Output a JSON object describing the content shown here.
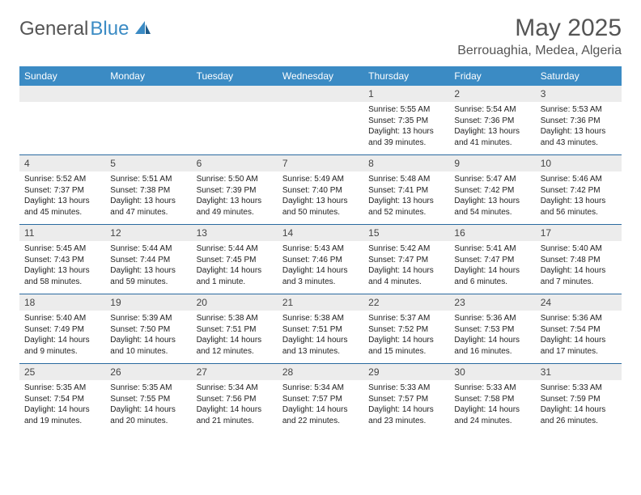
{
  "brand": {
    "general": "General",
    "blue": "Blue"
  },
  "title": "May 2025",
  "location": "Berrouaghia, Medea, Algeria",
  "colors": {
    "header_bg": "#3b8bc4",
    "divider": "#2a6aa0",
    "band": "#ececec",
    "text": "#222222",
    "title_text": "#555555"
  },
  "fonts": {
    "title_size_pt": 22,
    "location_size_pt": 12,
    "body_size_pt": 8
  },
  "dow": [
    "Sunday",
    "Monday",
    "Tuesday",
    "Wednesday",
    "Thursday",
    "Friday",
    "Saturday"
  ],
  "weeks": [
    [
      {
        "n": "",
        "t": ""
      },
      {
        "n": "",
        "t": ""
      },
      {
        "n": "",
        "t": ""
      },
      {
        "n": "",
        "t": ""
      },
      {
        "n": "1",
        "t": "Sunrise: 5:55 AM\nSunset: 7:35 PM\nDaylight: 13 hours and 39 minutes."
      },
      {
        "n": "2",
        "t": "Sunrise: 5:54 AM\nSunset: 7:36 PM\nDaylight: 13 hours and 41 minutes."
      },
      {
        "n": "3",
        "t": "Sunrise: 5:53 AM\nSunset: 7:36 PM\nDaylight: 13 hours and 43 minutes."
      }
    ],
    [
      {
        "n": "4",
        "t": "Sunrise: 5:52 AM\nSunset: 7:37 PM\nDaylight: 13 hours and 45 minutes."
      },
      {
        "n": "5",
        "t": "Sunrise: 5:51 AM\nSunset: 7:38 PM\nDaylight: 13 hours and 47 minutes."
      },
      {
        "n": "6",
        "t": "Sunrise: 5:50 AM\nSunset: 7:39 PM\nDaylight: 13 hours and 49 minutes."
      },
      {
        "n": "7",
        "t": "Sunrise: 5:49 AM\nSunset: 7:40 PM\nDaylight: 13 hours and 50 minutes."
      },
      {
        "n": "8",
        "t": "Sunrise: 5:48 AM\nSunset: 7:41 PM\nDaylight: 13 hours and 52 minutes."
      },
      {
        "n": "9",
        "t": "Sunrise: 5:47 AM\nSunset: 7:42 PM\nDaylight: 13 hours and 54 minutes."
      },
      {
        "n": "10",
        "t": "Sunrise: 5:46 AM\nSunset: 7:42 PM\nDaylight: 13 hours and 56 minutes."
      }
    ],
    [
      {
        "n": "11",
        "t": "Sunrise: 5:45 AM\nSunset: 7:43 PM\nDaylight: 13 hours and 58 minutes."
      },
      {
        "n": "12",
        "t": "Sunrise: 5:44 AM\nSunset: 7:44 PM\nDaylight: 13 hours and 59 minutes."
      },
      {
        "n": "13",
        "t": "Sunrise: 5:44 AM\nSunset: 7:45 PM\nDaylight: 14 hours and 1 minute."
      },
      {
        "n": "14",
        "t": "Sunrise: 5:43 AM\nSunset: 7:46 PM\nDaylight: 14 hours and 3 minutes."
      },
      {
        "n": "15",
        "t": "Sunrise: 5:42 AM\nSunset: 7:47 PM\nDaylight: 14 hours and 4 minutes."
      },
      {
        "n": "16",
        "t": "Sunrise: 5:41 AM\nSunset: 7:47 PM\nDaylight: 14 hours and 6 minutes."
      },
      {
        "n": "17",
        "t": "Sunrise: 5:40 AM\nSunset: 7:48 PM\nDaylight: 14 hours and 7 minutes."
      }
    ],
    [
      {
        "n": "18",
        "t": "Sunrise: 5:40 AM\nSunset: 7:49 PM\nDaylight: 14 hours and 9 minutes."
      },
      {
        "n": "19",
        "t": "Sunrise: 5:39 AM\nSunset: 7:50 PM\nDaylight: 14 hours and 10 minutes."
      },
      {
        "n": "20",
        "t": "Sunrise: 5:38 AM\nSunset: 7:51 PM\nDaylight: 14 hours and 12 minutes."
      },
      {
        "n": "21",
        "t": "Sunrise: 5:38 AM\nSunset: 7:51 PM\nDaylight: 14 hours and 13 minutes."
      },
      {
        "n": "22",
        "t": "Sunrise: 5:37 AM\nSunset: 7:52 PM\nDaylight: 14 hours and 15 minutes."
      },
      {
        "n": "23",
        "t": "Sunrise: 5:36 AM\nSunset: 7:53 PM\nDaylight: 14 hours and 16 minutes."
      },
      {
        "n": "24",
        "t": "Sunrise: 5:36 AM\nSunset: 7:54 PM\nDaylight: 14 hours and 17 minutes."
      }
    ],
    [
      {
        "n": "25",
        "t": "Sunrise: 5:35 AM\nSunset: 7:54 PM\nDaylight: 14 hours and 19 minutes."
      },
      {
        "n": "26",
        "t": "Sunrise: 5:35 AM\nSunset: 7:55 PM\nDaylight: 14 hours and 20 minutes."
      },
      {
        "n": "27",
        "t": "Sunrise: 5:34 AM\nSunset: 7:56 PM\nDaylight: 14 hours and 21 minutes."
      },
      {
        "n": "28",
        "t": "Sunrise: 5:34 AM\nSunset: 7:57 PM\nDaylight: 14 hours and 22 minutes."
      },
      {
        "n": "29",
        "t": "Sunrise: 5:33 AM\nSunset: 7:57 PM\nDaylight: 14 hours and 23 minutes."
      },
      {
        "n": "30",
        "t": "Sunrise: 5:33 AM\nSunset: 7:58 PM\nDaylight: 14 hours and 24 minutes."
      },
      {
        "n": "31",
        "t": "Sunrise: 5:33 AM\nSunset: 7:59 PM\nDaylight: 14 hours and 26 minutes."
      }
    ]
  ]
}
